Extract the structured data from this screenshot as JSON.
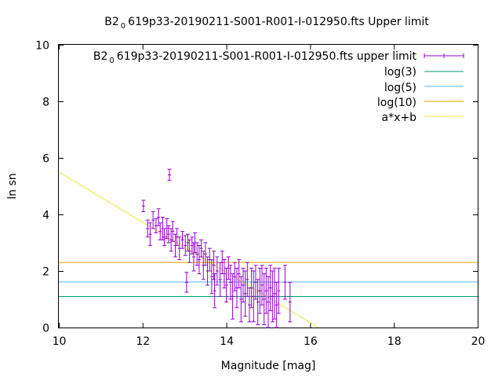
{
  "chart_data": {
    "type": "scatter",
    "title_prefix": "B2",
    "title_sub": "0",
    "title_rest": "619p33-20190211-S001-R001-I-012950.fts Upper limit",
    "xlabel": "Magnitude [mag]",
    "ylabel": "ln sn",
    "xlim": [
      10,
      20
    ],
    "ylim": [
      0,
      10
    ],
    "xticks": [
      10,
      12,
      14,
      16,
      18,
      20
    ],
    "yticks": [
      0,
      2,
      4,
      6,
      8,
      10
    ],
    "grid": false,
    "legend_position": "top-right",
    "series": [
      {
        "name_prefix": "B2",
        "name_sub": "0",
        "name_rest": "619p33-20190211-S001-R001-I-012950.fts upper limit",
        "kind": "errorbars",
        "color": "#9400d3",
        "points": [
          [
            12.02,
            4.3,
            0.2
          ],
          [
            12.12,
            3.5,
            0.3
          ],
          [
            12.18,
            3.3,
            0.4
          ],
          [
            12.25,
            3.8,
            0.3
          ],
          [
            12.32,
            3.6,
            0.25
          ],
          [
            12.38,
            3.9,
            0.3
          ],
          [
            12.42,
            3.4,
            0.3
          ],
          [
            12.48,
            3.5,
            0.4
          ],
          [
            12.52,
            3.2,
            0.3
          ],
          [
            12.58,
            3.5,
            0.35
          ],
          [
            12.62,
            3.3,
            0.3
          ],
          [
            12.64,
            5.4,
            0.2
          ],
          [
            12.68,
            3.1,
            0.4
          ],
          [
            12.72,
            3.4,
            0.35
          ],
          [
            12.78,
            2.9,
            0.4
          ],
          [
            12.82,
            3.2,
            0.3
          ],
          [
            12.88,
            2.8,
            0.4
          ],
          [
            12.95,
            3.1,
            0.3
          ],
          [
            13.02,
            2.9,
            0.35
          ],
          [
            13.05,
            1.6,
            0.35
          ],
          [
            13.08,
            3.0,
            0.3
          ],
          [
            13.12,
            2.7,
            0.4
          ],
          [
            13.18,
            2.9,
            0.3
          ],
          [
            13.22,
            2.5,
            0.5
          ],
          [
            13.25,
            3.0,
            0.35
          ],
          [
            13.3,
            2.6,
            0.4
          ],
          [
            13.35,
            2.4,
            0.5
          ],
          [
            13.4,
            2.8,
            0.3
          ],
          [
            13.45,
            2.2,
            0.5
          ],
          [
            13.5,
            2.6,
            0.4
          ],
          [
            13.55,
            2.0,
            0.5
          ],
          [
            13.6,
            2.4,
            0.4
          ],
          [
            13.65,
            1.8,
            0.6
          ],
          [
            13.7,
            2.2,
            0.5
          ],
          [
            13.72,
            1.3,
            0.6
          ],
          [
            13.78,
            2.0,
            0.5
          ],
          [
            13.85,
            1.7,
            0.6
          ],
          [
            13.9,
            2.3,
            0.4
          ],
          [
            13.95,
            1.9,
            0.5
          ],
          [
            14.0,
            1.5,
            0.6
          ],
          [
            14.05,
            2.1,
            0.4
          ],
          [
            14.1,
            1.6,
            0.6
          ],
          [
            14.15,
            1.1,
            0.8
          ],
          [
            14.2,
            1.8,
            0.5
          ],
          [
            14.25,
            1.4,
            0.7
          ],
          [
            14.3,
            1.9,
            0.5
          ],
          [
            14.35,
            1.0,
            0.8
          ],
          [
            14.4,
            1.5,
            0.6
          ],
          [
            14.45,
            1.2,
            0.8
          ],
          [
            14.5,
            1.7,
            0.6
          ],
          [
            14.55,
            0.8,
            0.6
          ],
          [
            14.6,
            1.4,
            0.7
          ],
          [
            14.65,
            1.1,
            0.9
          ],
          [
            14.7,
            1.6,
            0.6
          ],
          [
            14.75,
            0.9,
            0.8
          ],
          [
            14.8,
            1.3,
            0.8
          ],
          [
            14.85,
            1.5,
            0.7
          ],
          [
            14.9,
            1.0,
            0.9
          ],
          [
            14.95,
            1.3,
            0.8
          ],
          [
            15.0,
            0.9,
            0.9
          ],
          [
            15.05,
            1.4,
            0.8
          ],
          [
            15.1,
            1.1,
            0.9
          ],
          [
            15.15,
            1.2,
            0.9
          ],
          [
            15.2,
            0.8,
            0.8
          ],
          [
            15.25,
            1.3,
            0.8
          ],
          [
            15.4,
            1.6,
            0.6
          ],
          [
            15.52,
            0.9,
            0.7
          ]
        ]
      },
      {
        "name": "log(3)",
        "kind": "hline",
        "y": 1.0986,
        "color": "#009e73"
      },
      {
        "name": "log(5)",
        "kind": "hline",
        "y": 1.6094,
        "color": "#56b4e9"
      },
      {
        "name": "log(10)",
        "kind": "hline",
        "y": 2.3026,
        "color": "#e69f00"
      },
      {
        "name": "a*x+b",
        "kind": "line",
        "x0": 10,
        "y0": 5.5,
        "x1": 16.2,
        "y1": 0.0,
        "color": "#f0e442"
      }
    ]
  }
}
